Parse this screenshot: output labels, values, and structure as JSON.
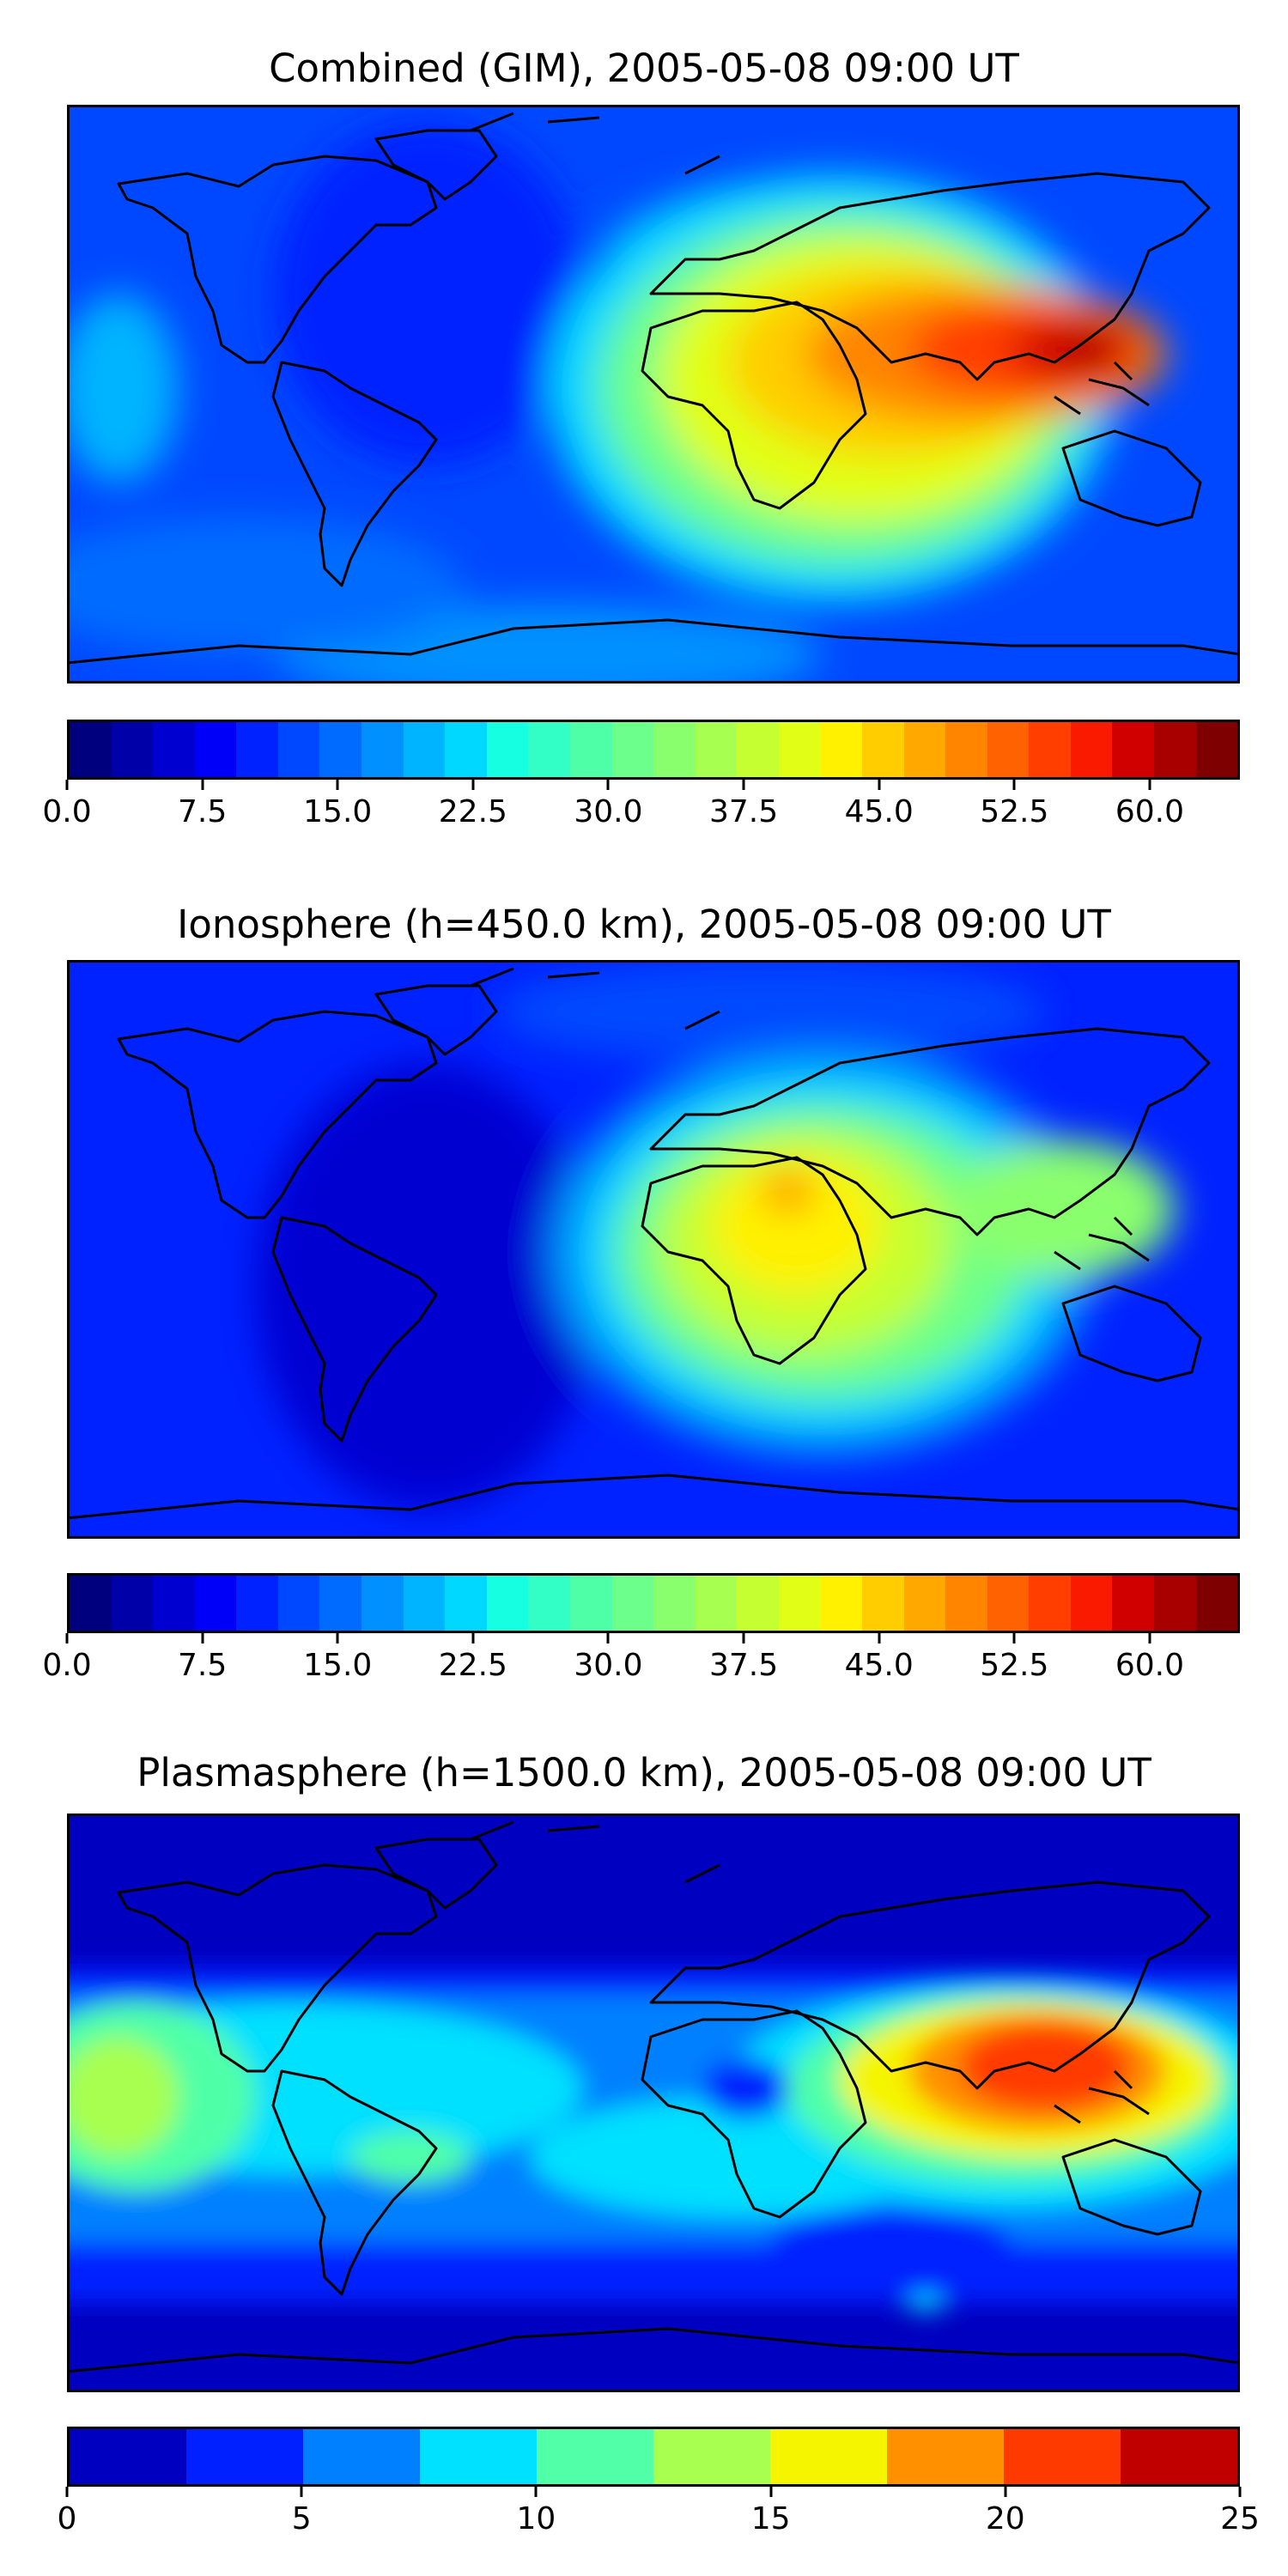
{
  "panels": [
    {
      "title": "Combined (GIM), 2005-05-08 09:00 UT",
      "colorbar": {
        "colors": [
          "#00007f",
          "#0000a8",
          "#0000d1",
          "#0000fa",
          "#0022ff",
          "#0048ff",
          "#006cff",
          "#0090ff",
          "#00b4ff",
          "#00d8ff",
          "#16ffe1",
          "#32ffc5",
          "#4fffa8",
          "#6cff8b",
          "#8aff6d",
          "#a7ff50",
          "#c5ff32",
          "#e1ff16",
          "#fff100",
          "#ffcd00",
          "#ffa900",
          "#ff8500",
          "#ff6200",
          "#ff3e00",
          "#fa1a00",
          "#d10000",
          "#a80000",
          "#7f0000"
        ],
        "ticks": [
          "0.0",
          "7.5",
          "15.0",
          "22.5",
          "30.0",
          "37.5",
          "45.0",
          "52.5",
          "60.0"
        ],
        "tick_values": [
          0,
          7.5,
          15,
          22.5,
          30,
          37.5,
          45,
          52.5,
          60
        ],
        "range": [
          0,
          65
        ]
      }
    },
    {
      "title": "Ionosphere  (h=450.0 km), 2005-05-08 09:00 UT",
      "colorbar": {
        "colors": [
          "#00007f",
          "#0000a8",
          "#0000d1",
          "#0000fa",
          "#0022ff",
          "#0048ff",
          "#006cff",
          "#0090ff",
          "#00b4ff",
          "#00d8ff",
          "#16ffe1",
          "#32ffc5",
          "#4fffa8",
          "#6cff8b",
          "#8aff6d",
          "#a7ff50",
          "#c5ff32",
          "#e1ff16",
          "#fff100",
          "#ffcd00",
          "#ffa900",
          "#ff8500",
          "#ff6200",
          "#ff3e00",
          "#fa1a00",
          "#d10000",
          "#a80000",
          "#7f0000"
        ],
        "ticks": [
          "0.0",
          "7.5",
          "15.0",
          "22.5",
          "30.0",
          "37.5",
          "45.0",
          "52.5",
          "60.0"
        ],
        "tick_values": [
          0,
          7.5,
          15,
          22.5,
          30,
          37.5,
          45,
          52.5,
          60
        ],
        "range": [
          0,
          65
        ]
      }
    },
    {
      "title": "Plasmasphere (h=1500.0 km), 2005-05-08 09:00 UT",
      "colorbar": {
        "colors": [
          "#0000c0",
          "#0020ff",
          "#0080ff",
          "#00e0ff",
          "#50ffa8",
          "#a8ff50",
          "#f5f500",
          "#ff9000",
          "#ff3a00",
          "#c00000"
        ],
        "ticks": [
          "0",
          "5",
          "10",
          "15",
          "20",
          "25"
        ],
        "tick_values": [
          0,
          5,
          10,
          15,
          20,
          25
        ],
        "range": [
          0,
          25
        ]
      }
    }
  ]
}
